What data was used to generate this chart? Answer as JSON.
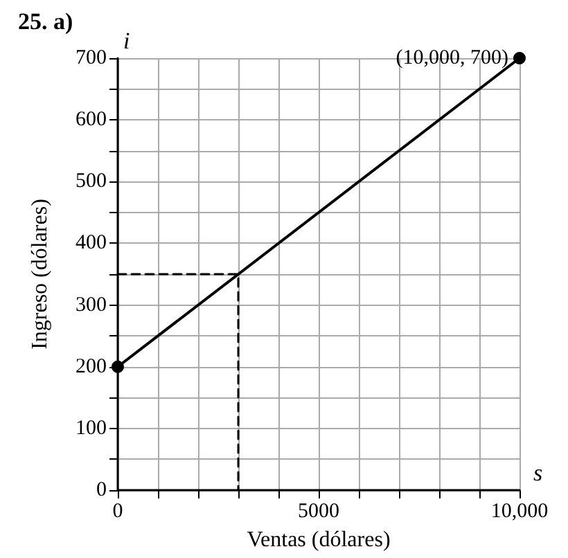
{
  "chart_data": {
    "type": "line",
    "title": "25. a)",
    "xlabel": "Ventas (dólares)",
    "ylabel": "Ingreso (dólares)",
    "annotations": [
      {
        "text": "(10,000, 700)",
        "x": 10000,
        "y": 700
      },
      "s",
      "i"
    ],
    "series": [
      {
        "x": [
          0,
          10000
        ],
        "values": [
          200,
          700
        ],
        "color": "#000000",
        "marker": "circle",
        "line_style": "solid"
      },
      {
        "x": [
          0,
          3000,
          3000
        ],
        "values": [
          350,
          350,
          0
        ],
        "color": "#000000",
        "marker": "none",
        "line_style": "dashed"
      }
    ],
    "xlim": [
      0,
      10000
    ],
    "ylim": [
      0,
      700
    ],
    "xticks": [
      0,
      {
        "value": 1000,
        "label": null
      },
      {
        "value": 2000,
        "label": null
      },
      {
        "value": 3000,
        "label": null
      },
      {
        "value": 4000,
        "label": null
      },
      5000,
      {
        "value": 6000,
        "label": null
      },
      {
        "value": 7000,
        "label": null
      },
      {
        "value": 8000,
        "label": null
      },
      {
        "value": 9000,
        "label": null
      },
      {
        "value": 10000,
        "label": "10,000"
      }
    ],
    "yticks": [
      0,
      {
        "value": 50,
        "label": null
      },
      100,
      {
        "value": 150,
        "label": null
      },
      200,
      {
        "value": 250,
        "label": null
      },
      300,
      {
        "value": 350,
        "label": null
      },
      400,
      {
        "value": 450,
        "label": null
      },
      500,
      {
        "value": 550,
        "label": null
      },
      600,
      {
        "value": 650,
        "label": null
      },
      700
    ],
    "grid": true
  }
}
